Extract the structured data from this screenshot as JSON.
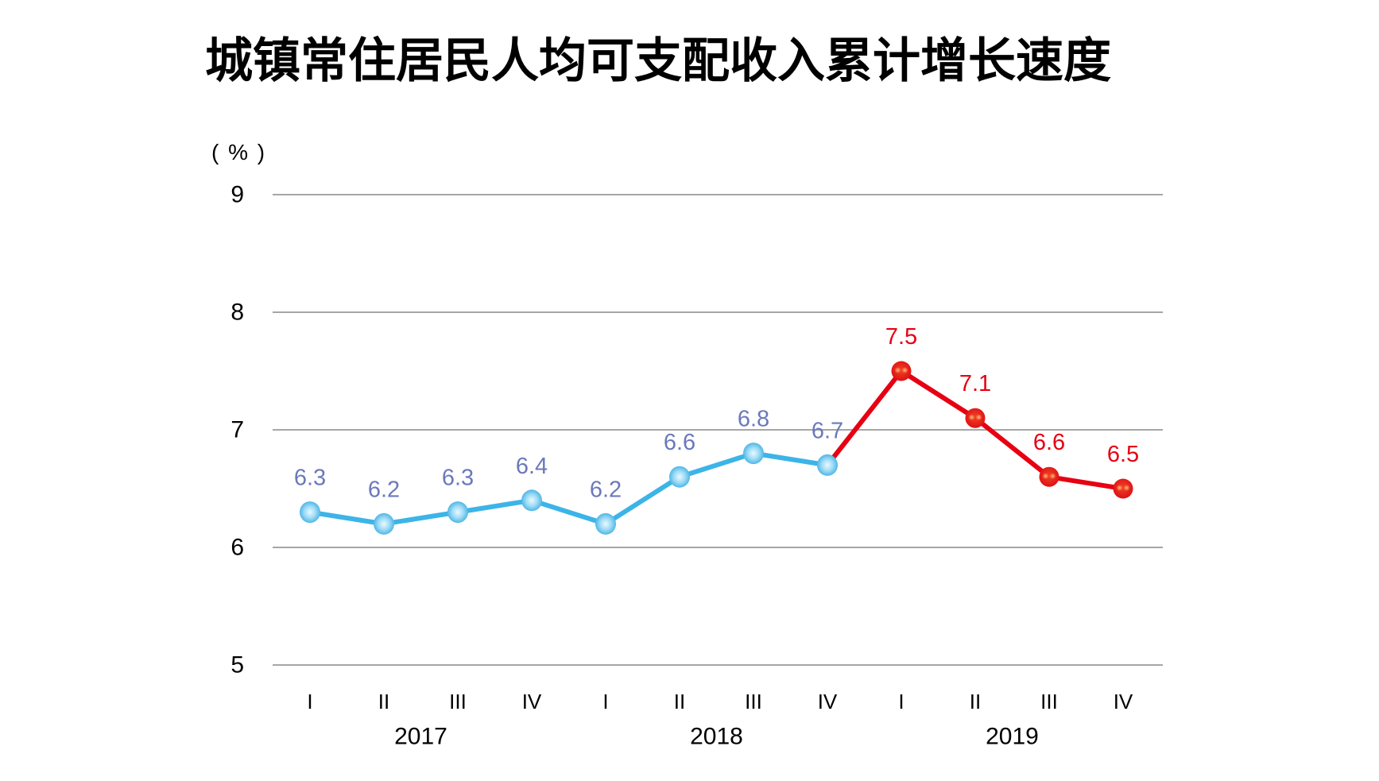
{
  "title": "城镇常住居民人均可支配收入累计增长速度",
  "y_axis_unit": "( % )",
  "colors": {
    "blue_line": "#3CB4E7",
    "blue_marker_edge": "#2EA6DF",
    "blue_marker_center": "#EAF9FF",
    "red_line": "#E60012",
    "red_marker_edge": "#DC0712",
    "red_marker_center": "#EF4423",
    "red_marker_highlight": "#FFB578",
    "blue_label": "#6B79BB",
    "red_label": "#E60012",
    "gridline": "#A6A6A8",
    "axis_text": "#000000"
  },
  "chart_data": {
    "type": "line",
    "title": "城镇常住居民人均可支配收入累计增长速度",
    "ylabel": "( % )",
    "ylim": [
      5,
      9
    ],
    "yticks": [
      9,
      8,
      7,
      6,
      5
    ],
    "grid": "horizontal",
    "legend": "none",
    "x_groups": [
      {
        "year": "2017",
        "quarters": [
          "I",
          "II",
          "III",
          "IV"
        ]
      },
      {
        "year": "2018",
        "quarters": [
          "I",
          "II",
          "III",
          "IV"
        ]
      },
      {
        "year": "2019",
        "quarters": [
          "I",
          "II",
          "III",
          "IV"
        ]
      }
    ],
    "points": [
      {
        "year": "2017",
        "quarter": "I",
        "value": 6.3,
        "series": "blue"
      },
      {
        "year": "2017",
        "quarter": "II",
        "value": 6.2,
        "series": "blue"
      },
      {
        "year": "2017",
        "quarter": "III",
        "value": 6.3,
        "series": "blue"
      },
      {
        "year": "2017",
        "quarter": "IV",
        "value": 6.4,
        "series": "blue"
      },
      {
        "year": "2018",
        "quarter": "I",
        "value": 6.2,
        "series": "blue"
      },
      {
        "year": "2018",
        "quarter": "II",
        "value": 6.6,
        "series": "blue"
      },
      {
        "year": "2018",
        "quarter": "III",
        "value": 6.8,
        "series": "blue"
      },
      {
        "year": "2018",
        "quarter": "IV",
        "value": 6.7,
        "series": "blue"
      },
      {
        "year": "2019",
        "quarter": "I",
        "value": 7.5,
        "series": "red"
      },
      {
        "year": "2019",
        "quarter": "II",
        "value": 7.1,
        "series": "red"
      },
      {
        "year": "2019",
        "quarter": "III",
        "value": 6.6,
        "series": "red"
      },
      {
        "year": "2019",
        "quarter": "IV",
        "value": 6.5,
        "series": "red"
      }
    ],
    "series": [
      {
        "name": "2017-2018",
        "color_key": "blue",
        "values": [
          6.3,
          6.2,
          6.3,
          6.4,
          6.2,
          6.6,
          6.8,
          6.7
        ]
      },
      {
        "name": "2019",
        "color_key": "red",
        "values": [
          7.5,
          7.1,
          6.6,
          6.5
        ]
      }
    ]
  }
}
